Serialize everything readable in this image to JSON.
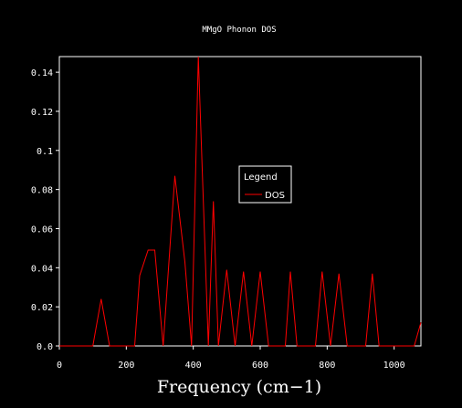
{
  "chart_data": {
    "type": "line",
    "title": "MMgO Phonon DOS",
    "xlabel": "Frequency (cm−1)",
    "ylabel": "",
    "xlim": [
      0,
      1080
    ],
    "ylim": [
      0,
      0.148
    ],
    "x_ticks": [
      0,
      200,
      400,
      600,
      800,
      1000
    ],
    "x_tick_labels": [
      "0",
      "200",
      "400",
      "600",
      "800",
      "1000"
    ],
    "y_ticks": [
      0,
      0.02,
      0.04,
      0.06,
      0.08,
      0.1,
      0.12,
      0.14
    ],
    "y_tick_labels": [
      "0.0",
      "0.02",
      "0.04",
      "0.06",
      "0.08",
      "0.1",
      "0.12",
      "0.14"
    ],
    "grid": false,
    "legend": {
      "title": "Legend",
      "placement": "center-right"
    },
    "series": [
      {
        "name": "DOS",
        "color": "#ff0000",
        "x": [
          0,
          100,
          125,
          150,
          225,
          240,
          265,
          285,
          310,
          345,
          375,
          395,
          415,
          445,
          460,
          475,
          500,
          525,
          550,
          575,
          600,
          625,
          650,
          675,
          690,
          710,
          765,
          785,
          810,
          835,
          860,
          915,
          935,
          955,
          1035,
          1060,
          1080
        ],
        "y": [
          0,
          0,
          0.024,
          0,
          0,
          0.036,
          0.049,
          0.049,
          0,
          0.087,
          0.043,
          0,
          0.148,
          0,
          0.074,
          0,
          0.039,
          0,
          0.038,
          0,
          0.038,
          0,
          0,
          0,
          0.038,
          0,
          0,
          0.038,
          0,
          0.037,
          0,
          0,
          0.037,
          0,
          0,
          0,
          0.012
        ]
      }
    ]
  }
}
